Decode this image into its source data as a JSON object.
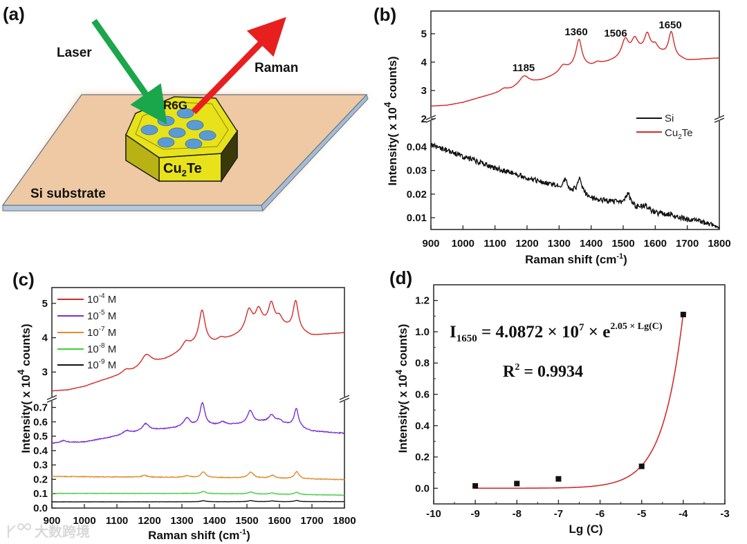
{
  "panel_labels": {
    "a": "(a)",
    "b": "(b)",
    "c": "(c)",
    "d": "(d)"
  },
  "illustration": {
    "laser": "Laser",
    "raman": "Raman",
    "molecule": "R6G",
    "crystal_main": "Cu",
    "crystal_sub": "2",
    "crystal_end": "Te",
    "substrate": "Si substrate",
    "colors": {
      "laser": "#1aa64a",
      "raman": "#e81f1f",
      "substrate": "#eec9a3",
      "crystal": "#e8e21a",
      "dots": "#5b9bd5"
    }
  },
  "axis_text": {
    "intensity_pre": "Intensity( x 10",
    "intensity_sup": "4",
    "intensity_post": " counts)",
    "raman_pre": "Raman shift (cm",
    "raman_sup": "-1",
    "raman_post": ")",
    "lgc": "Lg (C)"
  },
  "watermark": "大数跨境",
  "chart_data": [
    {
      "id": "b",
      "type": "line",
      "xlabel": "Raman shift (cm-1)",
      "ylabel": "Intensity( x 10^4 counts)",
      "xlim": [
        900,
        1800
      ],
      "xticks": [
        "900",
        "1000",
        "1100",
        "1200",
        "1300",
        "1400",
        "1500",
        "1600",
        "1700",
        "1800"
      ],
      "broken_y_axis": true,
      "segments": [
        {
          "ylim": [
            2,
            5.8
          ],
          "yticks": [
            "2",
            "3",
            "4",
            "5"
          ],
          "series": [
            "Cu2Te"
          ]
        },
        {
          "ylim": [
            0.005,
            0.051
          ],
          "yticks": [
            "0.01",
            "0.02",
            "0.03",
            "0.04"
          ],
          "series": [
            "Si"
          ]
        }
      ],
      "legend": {
        "placement": "right-middle",
        "entries": [
          {
            "name": "Si",
            "text": "Si",
            "sub": ""
          },
          {
            "name": "Cu2Te",
            "text": "Cu",
            "sub": "2",
            "end": "Te"
          }
        ]
      },
      "annotations": [
        "1185",
        "1360",
        "1506",
        "1650"
      ],
      "series": [
        {
          "name": "Cu2Te",
          "color": "#d42a2a",
          "noise": 0.012,
          "baseline": [
            [
              900,
              2.45
            ],
            [
              950,
              2.48
            ],
            [
              1000,
              2.58
            ],
            [
              1050,
              2.74
            ],
            [
              1100,
              2.88
            ],
            [
              1150,
              3.02
            ],
            [
              1200,
              3.22
            ],
            [
              1250,
              3.36
            ],
            [
              1300,
              3.58
            ],
            [
              1350,
              3.82
            ],
            [
              1400,
              3.84
            ],
            [
              1450,
              3.98
            ],
            [
              1500,
              4.12
            ],
            [
              1550,
              4.3
            ],
            [
              1600,
              4.36
            ],
            [
              1640,
              4.2
            ],
            [
              1700,
              4.05
            ],
            [
              1750,
              4.1
            ],
            [
              1800,
              4.14
            ]
          ],
          "peaks": [
            [
              1128,
              0.1,
              14
            ],
            [
              1190,
              0.32,
              18
            ],
            [
              1312,
              0.22,
              14
            ],
            [
              1362,
              0.95,
              11
            ],
            [
              1420,
              0.08,
              10
            ],
            [
              1506,
              0.62,
              13
            ],
            [
              1536,
              0.5,
              12
            ],
            [
              1575,
              0.62,
              11
            ],
            [
              1600,
              0.18,
              10
            ],
            [
              1650,
              0.88,
              10
            ]
          ]
        },
        {
          "name": "Si",
          "color": "#111111",
          "noise": 0.0022,
          "baseline": [
            [
              900,
              0.041
            ],
            [
              1000,
              0.036
            ],
            [
              1100,
              0.031
            ],
            [
              1200,
              0.027
            ],
            [
              1300,
              0.023
            ],
            [
              1400,
              0.018
            ],
            [
              1500,
              0.016
            ],
            [
              1600,
              0.012
            ],
            [
              1700,
              0.0095
            ],
            [
              1800,
              0.0065
            ]
          ],
          "peaks": [
            [
              1320,
              0.004,
              8
            ],
            [
              1365,
              0.0065,
              9
            ],
            [
              1515,
              0.005,
              8
            ],
            [
              1570,
              0.002,
              10
            ],
            [
              1650,
              0.001,
              8
            ]
          ]
        }
      ]
    },
    {
      "id": "c",
      "type": "line",
      "xlabel": "Raman shift (cm-1)",
      "ylabel": "Intensity( x 10^4 counts)",
      "xlim": [
        900,
        1800
      ],
      "xticks": [
        "900",
        "1000",
        "1100",
        "1200",
        "1300",
        "1400",
        "1500",
        "1600",
        "1700",
        "1800"
      ],
      "broken_y_axis": true,
      "segments": [
        {
          "ylim": [
            2.22,
            5.46
          ],
          "yticks": [
            "3",
            "4",
            "5"
          ],
          "series": [
            "1e-4"
          ]
        },
        {
          "ylim": [
            0,
            0.76
          ],
          "yticks": [
            "0.0",
            "0.1",
            "0.2",
            "0.3",
            "0.4",
            "0.5",
            "0.6",
            "0.7"
          ],
          "series": [
            "1e-5",
            "1e-7",
            "1e-8",
            "1e-9"
          ]
        }
      ],
      "legend": {
        "placement": "top-left",
        "entries": [
          {
            "name": "1e-4",
            "base": "10",
            "sup": "-4",
            "unit": " M"
          },
          {
            "name": "1e-5",
            "base": "10",
            "sup": "-5",
            "unit": " M"
          },
          {
            "name": "1e-7",
            "base": "10",
            "sup": "-7",
            "unit": " M"
          },
          {
            "name": "1e-8",
            "base": "10",
            "sup": "-8",
            "unit": " M"
          },
          {
            "name": "1e-9",
            "base": "10",
            "sup": "-9",
            "unit": " M"
          }
        ]
      },
      "series": [
        {
          "name": "1e-4",
          "color": "#d42a2a",
          "noise": 0.01,
          "baseline": [
            [
              900,
              2.45
            ],
            [
              950,
              2.48
            ],
            [
              1000,
              2.58
            ],
            [
              1050,
              2.74
            ],
            [
              1100,
              2.88
            ],
            [
              1150,
              3.02
            ],
            [
              1200,
              3.22
            ],
            [
              1250,
              3.36
            ],
            [
              1300,
              3.58
            ],
            [
              1350,
              3.82
            ],
            [
              1400,
              3.84
            ],
            [
              1450,
              3.98
            ],
            [
              1500,
              4.12
            ],
            [
              1550,
              4.3
            ],
            [
              1600,
              4.36
            ],
            [
              1640,
              4.2
            ],
            [
              1700,
              4.05
            ],
            [
              1750,
              4.1
            ],
            [
              1800,
              4.14
            ]
          ],
          "peaks": [
            [
              1128,
              0.1,
              14
            ],
            [
              1190,
              0.32,
              18
            ],
            [
              1312,
              0.22,
              14
            ],
            [
              1362,
              0.95,
              11
            ],
            [
              1420,
              0.08,
              10
            ],
            [
              1506,
              0.62,
              13
            ],
            [
              1536,
              0.5,
              12
            ],
            [
              1575,
              0.62,
              11
            ],
            [
              1600,
              0.18,
              10
            ],
            [
              1650,
              0.88,
              10
            ]
          ]
        },
        {
          "name": "1e-5",
          "color": "#7a2fd0",
          "noise": 0.006,
          "baseline": [
            [
              900,
              0.45
            ],
            [
              1000,
              0.46
            ],
            [
              1100,
              0.5
            ],
            [
              1200,
              0.54
            ],
            [
              1300,
              0.56
            ],
            [
              1400,
              0.575
            ],
            [
              1500,
              0.585
            ],
            [
              1550,
              0.6
            ],
            [
              1600,
              0.595
            ],
            [
              1640,
              0.57
            ],
            [
              1700,
              0.535
            ],
            [
              1800,
              0.52
            ]
          ],
          "peaks": [
            [
              935,
              0.015,
              12
            ],
            [
              1130,
              0.025,
              14
            ],
            [
              1188,
              0.05,
              12
            ],
            [
              1315,
              0.06,
              12
            ],
            [
              1363,
              0.16,
              9
            ],
            [
              1425,
              0.02,
              10
            ],
            [
              1510,
              0.09,
              10
            ],
            [
              1576,
              0.05,
              10
            ],
            [
              1600,
              0.015,
              8
            ],
            [
              1652,
              0.13,
              8
            ]
          ]
        },
        {
          "name": "1e-7",
          "color": "#e08a2a",
          "noise": 0.005,
          "baseline": [
            [
              900,
              0.22
            ],
            [
              1200,
              0.215
            ],
            [
              1500,
              0.21
            ],
            [
              1800,
              0.198
            ]
          ],
          "peaks": [
            [
              1185,
              0.012,
              10
            ],
            [
              1315,
              0.012,
              10
            ],
            [
              1366,
              0.04,
              9
            ],
            [
              1512,
              0.04,
              10
            ],
            [
              1578,
              0.02,
              10
            ],
            [
              1653,
              0.05,
              8
            ]
          ]
        },
        {
          "name": "1e-8",
          "color": "#3ccf3c",
          "noise": 0.003,
          "baseline": [
            [
              900,
              0.102
            ],
            [
              1300,
              0.102
            ],
            [
              1500,
              0.098
            ],
            [
              1800,
              0.09
            ]
          ],
          "peaks": [
            [
              1366,
              0.015,
              9
            ],
            [
              1512,
              0.014,
              10
            ],
            [
              1578,
              0.008,
              10
            ],
            [
              1653,
              0.016,
              8
            ]
          ]
        },
        {
          "name": "1e-9",
          "color": "#111111",
          "noise": 0.0015,
          "baseline": [
            [
              900,
              0.043
            ],
            [
              1800,
              0.045
            ]
          ],
          "peaks": [
            [
              1366,
              0.007,
              9
            ],
            [
              1512,
              0.007,
              10
            ],
            [
              1578,
              0.005,
              10
            ],
            [
              1653,
              0.008,
              8
            ]
          ]
        }
      ]
    },
    {
      "id": "d",
      "type": "scatter",
      "xlabel": "Lg (C)",
      "ylabel": "Intensity( x 10^4 counts)",
      "xlim": [
        -10,
        -3
      ],
      "ylim": [
        -0.1,
        1.3
      ],
      "xticks": [
        "-10",
        "-9",
        "-8",
        "-7",
        "-6",
        "-5",
        "-4",
        "-3"
      ],
      "yticks": [
        "0.0",
        "0.2",
        "0.4",
        "0.6",
        "0.8",
        "1.0",
        "1.2"
      ],
      "points": [
        {
          "x": -9,
          "y": 0.015
        },
        {
          "x": -8,
          "y": 0.03
        },
        {
          "x": -7,
          "y": 0.06
        },
        {
          "x": -5,
          "y": 0.14
        },
        {
          "x": -4,
          "y": 1.11
        }
      ],
      "point_color": "#111111",
      "fit": {
        "color": "#d42a2a",
        "coefficient_1e4": 4087.2,
        "exponent": 2.05,
        "x_range": [
          -9,
          -4
        ]
      },
      "equation": {
        "I": "I",
        "I_sub": "1650",
        "body": " = 4.0872 × 10",
        "pow": "7",
        "times_e": " × e",
        "exp": "2.05 × Lg(C)"
      },
      "r_squared": {
        "R": "R",
        "sup": "2",
        "value": " = 0.9934"
      }
    }
  ]
}
